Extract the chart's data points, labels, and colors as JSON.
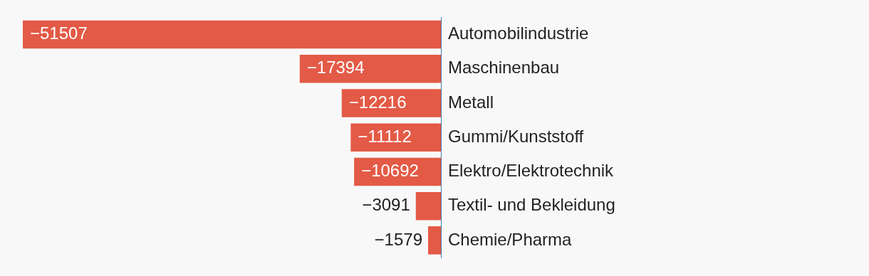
{
  "chart_data": {
    "type": "bar",
    "orientation": "horizontal",
    "categories": [
      "Automobilindustrie",
      "Maschinenbau",
      "Metall",
      "Gummi/Kunststoff",
      "Elektro/Elektrotechnik",
      "Textil- und Bekleidung",
      "Chemie/Pharma"
    ],
    "values": [
      -51507,
      -17394,
      -12216,
      -11112,
      -10692,
      -3091,
      -1579
    ],
    "color": "#e35a46",
    "data_labels": true,
    "legend": false
  }
}
